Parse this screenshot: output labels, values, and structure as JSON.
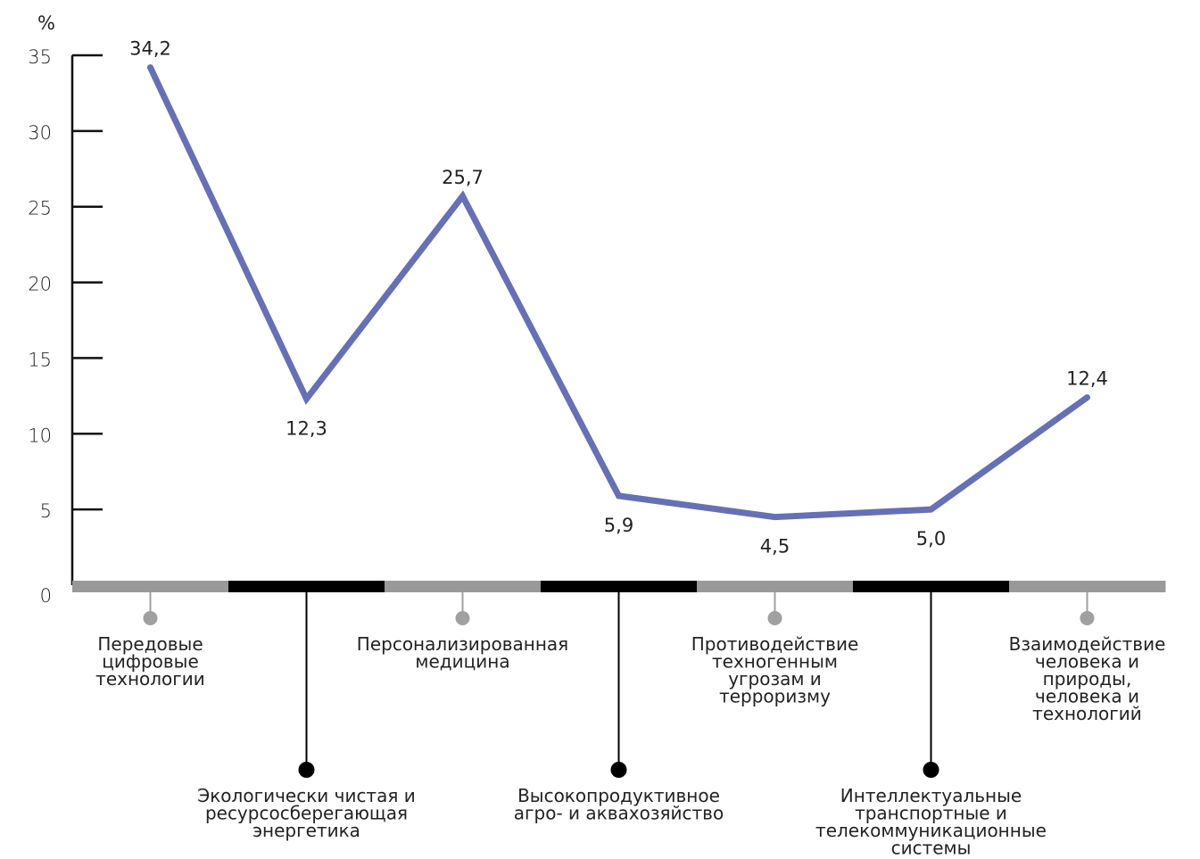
{
  "chart_data": {
    "type": "line",
    "ylabel": "%",
    "ylim": [
      0,
      35
    ],
    "yticks": [
      0,
      5,
      10,
      15,
      20,
      25,
      30,
      35
    ],
    "categories": [
      "Передовые цифровые технологии",
      "Экологически чистая и ресурсосберегающая энергетика",
      "Персонализированная медицина",
      "Высокопродуктивное агро- и аквахозяйство",
      "Противодействие техногенным угрозам и терроризму",
      "Интеллектуальные транспортные и телекоммуникационные системы",
      "Взаимодействие человека и природы, человека и технологий"
    ],
    "category_lines": [
      [
        "Передовые",
        "цифровые",
        "технологии"
      ],
      [
        "Экологически чистая и",
        "ресурсосберегающая",
        "энергетика"
      ],
      [
        "Персонализированная",
        "медицина"
      ],
      [
        "Высокопродуктивное",
        "агро- и аквахозяйство"
      ],
      [
        "Противодействие",
        "техногенным",
        "угрозам и",
        "терроризму"
      ],
      [
        "Интеллектуальные",
        "транспортные и",
        "телекоммуникационные",
        "системы"
      ],
      [
        "Взаимодействие",
        "человека и",
        "природы,",
        "человека и",
        "технологий"
      ]
    ],
    "values": [
      34.2,
      12.3,
      25.7,
      5.9,
      4.5,
      5.0,
      12.4
    ],
    "value_labels": [
      "34,2",
      "12,3",
      "25,7",
      "5,9",
      "4,5",
      "5,0",
      "12,4"
    ],
    "grid": false,
    "legend": "none"
  },
  "colors": {
    "line": "#6670b4",
    "axis": "#111111",
    "band_grey": "#999999",
    "band_black": "#000000",
    "marker_grey": "#a0a0a0",
    "marker_black": "#000000"
  }
}
